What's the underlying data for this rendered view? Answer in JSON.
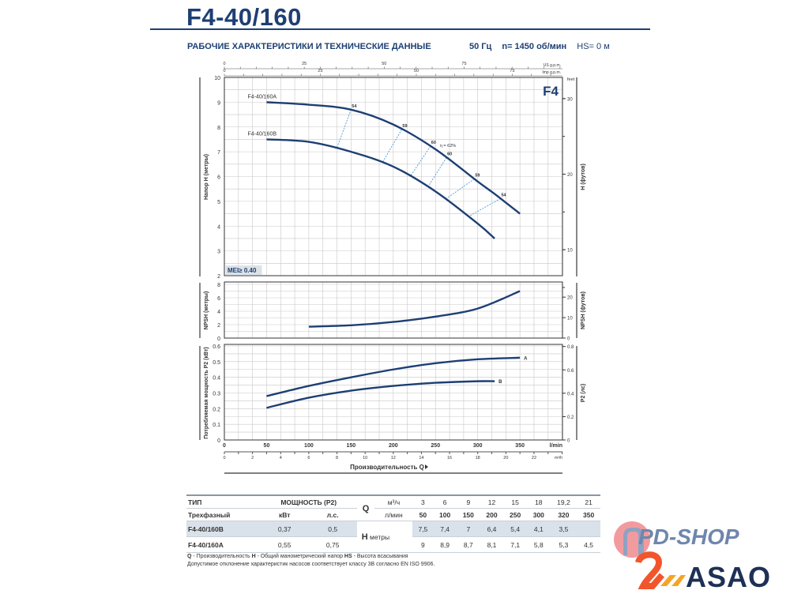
{
  "header": {
    "title": "F4-40/160",
    "subtitle": "РАБОЧИЕ ХАРАКТЕРИСТИКИ И ТЕХНИЧЕСКИЕ ДАННЫЕ",
    "freq": "50 Гц",
    "speed": "n= 1450 об/мин",
    "hs": "HS= 0 м"
  },
  "chart_data": {
    "type": "line",
    "series_label": "F4",
    "mei_label": "MEI≥ 0.40",
    "x_axis": {
      "label": "Производительность Q",
      "unit": "l/min",
      "range": [
        0,
        400
      ],
      "ticks": [
        0,
        50,
        100,
        150,
        200,
        250,
        300,
        350
      ]
    },
    "x_axis_m3h": {
      "unit": "m³/h",
      "ticks": [
        0,
        2,
        4,
        6,
        8,
        10,
        12,
        14,
        16,
        18,
        20,
        22
      ]
    },
    "x_axis_usgpm": {
      "unit": "US g.p.m.",
      "ticks": [
        0,
        25,
        50,
        75
      ]
    },
    "x_axis_impgpm": {
      "unit": "Imp g.p.m.",
      "ticks": [
        0,
        25,
        50,
        75
      ]
    },
    "head_chart": {
      "ylabel": "Напор H (метры)",
      "ylabel_right": "H (футов)",
      "right_unit": "feet",
      "ylim": [
        2,
        10
      ],
      "yticks": [
        2,
        3,
        4,
        5,
        6,
        7,
        8,
        9,
        10
      ],
      "yticks_right": [
        10,
        20,
        30
      ],
      "series": [
        {
          "name": "F4-40/160A",
          "x": [
            50,
            100,
            150,
            200,
            250,
            300,
            320,
            350
          ],
          "y": [
            9,
            8.9,
            8.7,
            8.1,
            7.1,
            5.8,
            5.3,
            4.5
          ]
        },
        {
          "name": "F4-40/160B",
          "x": [
            50,
            100,
            150,
            200,
            250,
            300,
            320
          ],
          "y": [
            7.5,
            7.4,
            7,
            6.4,
            5.4,
            4.1,
            3.5
          ]
        }
      ],
      "efficiency_lines": [
        {
          "label": "54",
          "qA": 150,
          "qB": 133
        },
        {
          "label": "59",
          "qA": 210,
          "qB": 187
        },
        {
          "label": "60",
          "qA": 244,
          "qB": 220
        },
        {
          "label": "60",
          "qA": 263,
          "qB": 241
        },
        {
          "label": "59",
          "qA": 296,
          "qB": 262
        },
        {
          "label": "54",
          "qA": 327,
          "qB": 289
        }
      ],
      "efficiency_peak_label": "η = 62%"
    },
    "npsh_chart": {
      "ylabel": "NPSH (метры)",
      "ylabel_right": "NPSH (футов)",
      "ylim": [
        0,
        8
      ],
      "yticks": [
        0,
        2,
        4,
        6,
        8
      ],
      "yticks_right": [
        0,
        10,
        20
      ],
      "series": [
        {
          "name": "NPSH",
          "x": [
            100,
            150,
            200,
            250,
            300,
            350
          ],
          "y": [
            1.7,
            1.9,
            2.4,
            3.2,
            4.4,
            7
          ]
        }
      ]
    },
    "power_chart": {
      "ylabel": "Потребляемая мощность P2 (кВт)",
      "ylabel_right": "P2 (лс)",
      "ylim": [
        0,
        0.6
      ],
      "yticks": [
        0,
        0.1,
        0.2,
        0.3,
        0.4,
        0.5,
        0.6
      ],
      "yticks_right": [
        0,
        0.2,
        0.4,
        0.6,
        0.8
      ],
      "series": [
        {
          "name": "A",
          "x": [
            50,
            100,
            150,
            200,
            250,
            300,
            350
          ],
          "y": [
            0.28,
            0.345,
            0.4,
            0.45,
            0.49,
            0.515,
            0.525
          ]
        },
        {
          "name": "B",
          "x": [
            50,
            100,
            150,
            200,
            250,
            300,
            320
          ],
          "y": [
            0.205,
            0.27,
            0.315,
            0.345,
            0.365,
            0.375,
            0.375
          ]
        }
      ]
    },
    "colors": {
      "curve": "#1d3f73",
      "grid": "#c8c8c8",
      "eff": "#3a8fd0"
    }
  },
  "table": {
    "type_label": "ТИП",
    "phase_label": "Трехфазный",
    "power_label": "МОЩНОСТЬ (P2)",
    "kw_label": "кВт",
    "hp_label": "л.с.",
    "q_label": "Q",
    "m3h_label": "м³/ч",
    "lmin_label": "л/мин",
    "h_label": "H",
    "h_unit": "метры",
    "q_m3h": [
      "3",
      "6",
      "9",
      "12",
      "15",
      "18",
      "19,2",
      "21"
    ],
    "q_lmin": [
      "50",
      "100",
      "150",
      "200",
      "250",
      "300",
      "320",
      "350"
    ],
    "rows": [
      {
        "model": "F4-40/160B",
        "kw": "0,37",
        "hp": "0,5",
        "h": [
          "7,5",
          "7,4",
          "7",
          "6,4",
          "5,4",
          "4,1",
          "3,5",
          ""
        ]
      },
      {
        "model": "F4-40/160A",
        "kw": "0,55",
        "hp": "0,75",
        "h": [
          "9",
          "8,9",
          "8,7",
          "8,1",
          "7,1",
          "5,8",
          "5,3",
          "4,5"
        ]
      }
    ]
  },
  "notes": {
    "line1_q": "Q",
    "line1_q_text": " - Производительность  ",
    "line1_h": "H",
    "line1_h_text": " - Общий манометрический напор  ",
    "line1_hs": "HS",
    "line1_hs_text": " - Высота всасывания",
    "line2": "Допустимое отклонение характеристик насосов соответствует классу 3B согласно EN ISO 9906."
  },
  "logos": {
    "pdshop": "PD-SHOP",
    "asao": "ASAO"
  }
}
